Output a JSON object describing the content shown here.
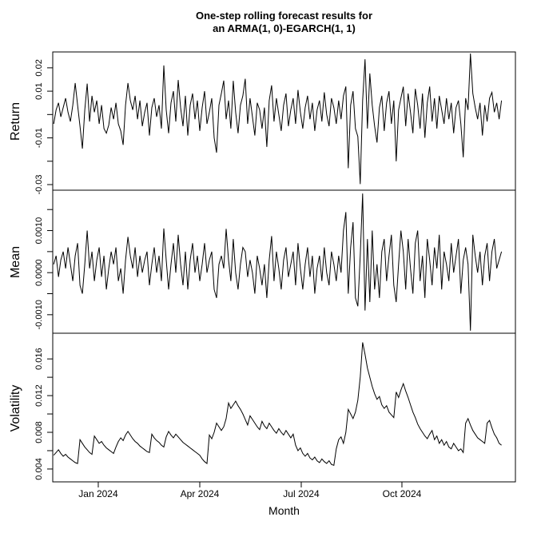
{
  "title": {
    "line1": "One-step rolling forecast results for",
    "line2": "an ARMA(1, 0)-EGARCH(1, 1)"
  },
  "colors": {
    "line": "#000000",
    "background": "#ffffff",
    "box": "#000000"
  },
  "chart_data": {
    "type": "line",
    "layout": "3 stacked panels, shared x axis, black line on white, boxed panels, rotated y tick labels",
    "x_axis": {
      "label": "Month",
      "x_start_frac": 0.002,
      "x_end_frac": 0.97,
      "ticks": [
        {
          "f": 0.0984,
          "label": "Jan 2024"
        },
        {
          "f": 0.3178,
          "label": "Apr 2024"
        },
        {
          "f": 0.5371,
          "label": "Jul 2024"
        },
        {
          "f": 0.7547,
          "label": "Oct 2024"
        }
      ]
    },
    "panels": [
      {
        "name": "return",
        "ylabel": "Return",
        "ylim": [
          -0.0324,
          0.0268
        ],
        "yticks": [
          {
            "v": 0.02,
            "label": "0.02"
          },
          {
            "v": 0.01,
            "label": "0.01"
          },
          {
            "v": 0.0
          },
          {
            "v": -0.01,
            "label": "-0.01"
          },
          {
            "v": -0.02
          },
          {
            "v": -0.03,
            "label": "-0.03"
          }
        ],
        "values": [
          -0.004,
          0.002,
          0.005,
          -0.001,
          0.003,
          0.007,
          0.001,
          -0.003,
          0.004,
          0.0135,
          0.004,
          -0.005,
          -0.0146,
          0.002,
          0.0132,
          -0.003,
          0.008,
          0.001,
          0.006,
          -0.004,
          0.004,
          -0.006,
          -0.008,
          -0.0045,
          0.003,
          -0.002,
          0.005,
          -0.004,
          -0.007,
          -0.013,
          0.004,
          0.0135,
          0.006,
          0.002,
          0.008,
          -0.002,
          0.006,
          -0.005,
          0.001,
          0.005,
          -0.009,
          0.003,
          0.007,
          -0.001,
          0.004,
          -0.006,
          0.021,
          0.002,
          -0.008,
          0.005,
          0.01,
          -0.003,
          0.0148,
          0.003,
          -0.005,
          0.008,
          -0.009,
          0.004,
          0.009,
          -0.002,
          0.006,
          -0.007,
          0.003,
          0.01,
          -0.004,
          0.001,
          0.007,
          -0.01,
          -0.0163,
          0.004,
          0.009,
          0.0145,
          -0.002,
          0.006,
          -0.006,
          0.0144,
          0.001,
          -0.008,
          0.004,
          0.008,
          0.0153,
          -0.004,
          0.007,
          -0.001,
          -0.009,
          0.005,
          0.002,
          -0.006,
          0.003,
          -0.0139,
          0.006,
          0.0125,
          -0.003,
          0.007,
          0.0,
          -0.007,
          0.004,
          0.009,
          -0.005,
          0.002,
          0.007,
          -0.004,
          0.0105,
          0.001,
          -0.006,
          0.003,
          0.008,
          -0.002,
          0.005,
          -0.007,
          0.002,
          0.006,
          -0.003,
          0.0095,
          0.0,
          -0.005,
          0.007,
          0.003,
          -0.004,
          0.006,
          -0.002,
          0.008,
          0.012,
          -0.023,
          0.004,
          0.01,
          -0.006,
          -0.0094,
          -0.0298,
          0.006,
          0.0237,
          -0.006,
          0.0176,
          0.004,
          -0.005,
          -0.012,
          0.003,
          0.008,
          -0.007,
          0.005,
          0.01,
          -0.004,
          0.006,
          -0.02,
          0.002,
          0.007,
          0.0119,
          -0.005,
          0.009,
          0.001,
          -0.008,
          0.011,
          0.004,
          -0.006,
          0.009,
          -0.01,
          0.005,
          0.012,
          -0.003,
          0.007,
          -0.006,
          0.008,
          0.002,
          -0.004,
          0.007,
          -0.002,
          0.005,
          -0.008,
          0.003,
          0.006,
          -0.004,
          -0.0183,
          0.007,
          0.002,
          0.0261,
          0.009,
          0.003,
          -0.002,
          0.005,
          -0.009,
          0.004,
          -0.003,
          0.007,
          0.0095,
          0.001,
          0.005,
          -0.002,
          0.006
        ]
      },
      {
        "name": "mean",
        "ylabel": "Mean",
        "ylim": [
          -0.00144,
          0.00196
        ],
        "yticks": [
          {
            "v": 0.0015
          },
          {
            "v": 0.001,
            "label": "0.0010"
          },
          {
            "v": 0.0005
          },
          {
            "v": 0.0,
            "label": "0.0000"
          },
          {
            "v": -0.0005
          },
          {
            "v": -0.001,
            "label": "-0.0010"
          }
        ],
        "values": [
          0.0002,
          0.0004,
          -0.0001,
          0.0003,
          0.0005,
          0.0001,
          0.0006,
          0.0002,
          -0.0002,
          0.0004,
          0.0007,
          -0.0003,
          -0.0005,
          0.0002,
          0.001,
          0.0001,
          0.0005,
          -0.0002,
          0.0003,
          0.0006,
          -0.0001,
          0.0004,
          -0.0004,
          0.0001,
          0.0005,
          0.0002,
          0.0006,
          -0.0002,
          0.0001,
          -0.0005,
          0.0003,
          0.00085,
          0.0004,
          0.0001,
          0.0006,
          -0.0001,
          0.0004,
          0.0,
          0.0003,
          0.0005,
          -0.0003,
          0.0002,
          0.0006,
          0.0,
          0.0004,
          -0.0002,
          0.00105,
          0.0003,
          -0.0004,
          0.0002,
          0.0007,
          0.0,
          0.0009,
          0.0002,
          -0.0003,
          0.0005,
          -0.0004,
          0.0003,
          0.0007,
          0.0,
          0.0004,
          -0.0002,
          0.0002,
          0.0007,
          0.0,
          0.0003,
          0.0005,
          -0.0004,
          -0.0006,
          0.0002,
          0.0004,
          0.0001,
          0.00104,
          0.0003,
          -0.0002,
          0.0008,
          0.0,
          -0.0004,
          0.0002,
          0.0006,
          0.0005,
          -0.0001,
          0.0003,
          0.0,
          -0.0005,
          0.0004,
          0.0001,
          -0.0003,
          0.0002,
          -0.0006,
          0.0003,
          0.00087,
          -0.0002,
          0.0005,
          0.0001,
          -0.0004,
          0.0003,
          0.0006,
          -0.0001,
          0.0002,
          0.0005,
          -0.0003,
          0.0007,
          0.0001,
          -0.0004,
          0.0002,
          0.0006,
          -0.0001,
          0.0004,
          -0.0005,
          0.0001,
          0.0004,
          -0.0002,
          0.0006,
          0.0,
          -0.0003,
          0.0005,
          0.0002,
          -0.0002,
          0.0004,
          0.0,
          0.001,
          0.00144,
          -0.0005,
          0.0006,
          0.0012,
          -0.0006,
          -0.0008,
          0.0004,
          0.00188,
          -0.0009,
          0.0008,
          -0.0007,
          0.001,
          -0.0004,
          0.0002,
          -0.0006,
          0.0005,
          0.0008,
          -0.0002,
          0.0004,
          0.0009,
          -0.0003,
          -0.0007,
          0.0002,
          0.001,
          0.0005,
          -0.0004,
          0.0008,
          0.0001,
          -0.0005,
          0.0007,
          0.001,
          -0.0002,
          0.0004,
          -0.0006,
          0.0008,
          0.0003,
          -0.0003,
          0.0006,
          0.0001,
          0.0009,
          -0.0004,
          0.0005,
          0.0002,
          -0.0002,
          0.0007,
          0.0,
          0.0004,
          0.0008,
          -0.0005,
          0.0003,
          0.0006,
          0.0002,
          -0.00138,
          0.0009,
          0.0004,
          0.0,
          0.0005,
          -0.0003,
          0.0004,
          0.0007,
          -0.0002,
          0.0005,
          0.0008,
          0.0001,
          0.0003,
          0.0005
        ]
      },
      {
        "name": "volatility",
        "ylabel": "Volatility",
        "ylim": [
          0.0026,
          0.0188
        ],
        "yticks": [
          {
            "v": 0.016,
            "label": "0.016"
          },
          {
            "v": 0.014
          },
          {
            "v": 0.012,
            "label": "0.012"
          },
          {
            "v": 0.01
          },
          {
            "v": 0.008,
            "label": "0.008"
          },
          {
            "v": 0.006
          },
          {
            "v": 0.004,
            "label": "0.004"
          }
        ],
        "values": [
          0.0055,
          0.0058,
          0.0061,
          0.0057,
          0.0054,
          0.0056,
          0.0053,
          0.0051,
          0.0049,
          0.0047,
          0.0046,
          0.0072,
          0.0068,
          0.0064,
          0.0061,
          0.0058,
          0.0056,
          0.0076,
          0.0072,
          0.0068,
          0.007,
          0.0066,
          0.0063,
          0.0061,
          0.0059,
          0.0057,
          0.0064,
          0.007,
          0.0074,
          0.0071,
          0.0077,
          0.0081,
          0.0077,
          0.0073,
          0.007,
          0.0068,
          0.0065,
          0.0063,
          0.0061,
          0.0059,
          0.0058,
          0.0078,
          0.0074,
          0.0071,
          0.0069,
          0.0066,
          0.0064,
          0.0075,
          0.0081,
          0.0077,
          0.0074,
          0.0078,
          0.0075,
          0.0072,
          0.0069,
          0.0067,
          0.0065,
          0.0063,
          0.0061,
          0.0059,
          0.0057,
          0.0055,
          0.0051,
          0.0048,
          0.0046,
          0.0077,
          0.0073,
          0.008,
          0.009,
          0.0086,
          0.0082,
          0.0086,
          0.0095,
          0.0112,
          0.0106,
          0.011,
          0.0114,
          0.0109,
          0.0105,
          0.01,
          0.0094,
          0.0088,
          0.0098,
          0.0094,
          0.009,
          0.0086,
          0.0083,
          0.0092,
          0.0087,
          0.0084,
          0.009,
          0.0086,
          0.0082,
          0.0079,
          0.0084,
          0.008,
          0.0077,
          0.0082,
          0.0078,
          0.0074,
          0.0078,
          0.0066,
          0.006,
          0.0063,
          0.0057,
          0.0054,
          0.0057,
          0.0052,
          0.005,
          0.0053,
          0.0049,
          0.0047,
          0.0051,
          0.0048,
          0.0046,
          0.0049,
          0.0045,
          0.0044,
          0.0062,
          0.0072,
          0.0075,
          0.0068,
          0.008,
          0.0105,
          0.01,
          0.0095,
          0.0102,
          0.0115,
          0.014,
          0.0178,
          0.0165,
          0.015,
          0.014,
          0.013,
          0.0122,
          0.0116,
          0.0119,
          0.011,
          0.0106,
          0.0109,
          0.0102,
          0.0099,
          0.0096,
          0.0124,
          0.0118,
          0.0126,
          0.0133,
          0.0125,
          0.0118,
          0.011,
          0.0102,
          0.0096,
          0.0089,
          0.0084,
          0.008,
          0.0076,
          0.0073,
          0.0078,
          0.0082,
          0.0072,
          0.0076,
          0.0068,
          0.0072,
          0.0066,
          0.007,
          0.0064,
          0.0062,
          0.0068,
          0.0064,
          0.006,
          0.0062,
          0.0058,
          0.009,
          0.0095,
          0.0088,
          0.0082,
          0.0078,
          0.0074,
          0.0072,
          0.007,
          0.0068,
          0.009,
          0.0093,
          0.0085,
          0.0078,
          0.0074,
          0.0068,
          0.0066
        ]
      }
    ]
  }
}
